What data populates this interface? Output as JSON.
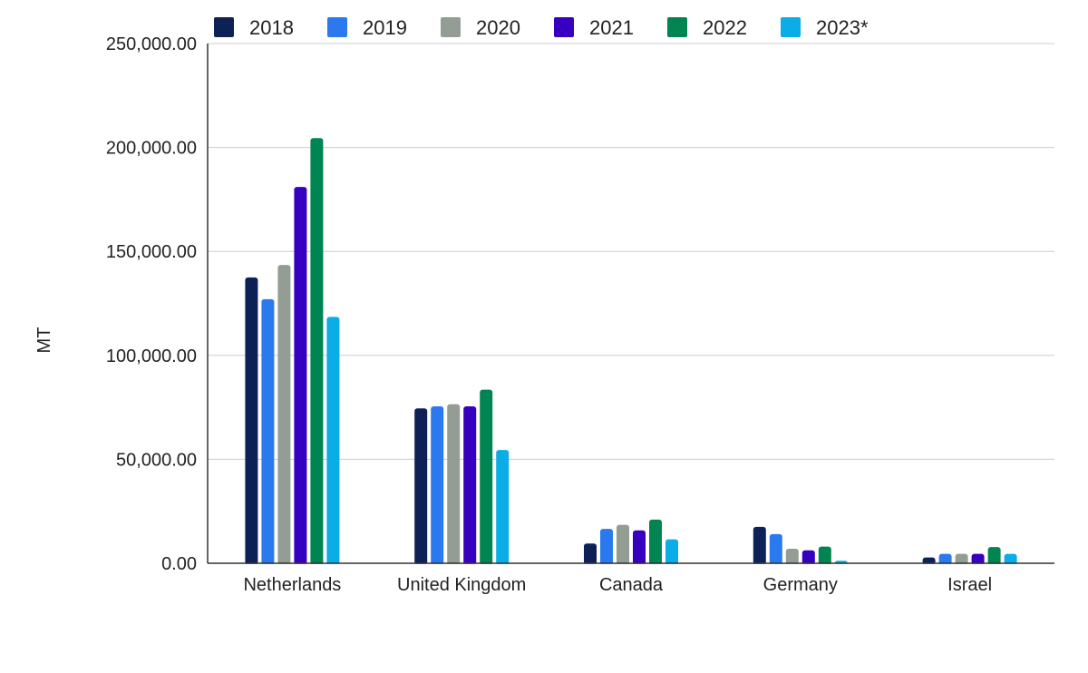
{
  "chart_data": {
    "type": "bar",
    "title": "",
    "xlabel": "",
    "ylabel": "MT",
    "ylim": [
      0,
      250000
    ],
    "yticks": [
      0,
      50000,
      100000,
      150000,
      200000,
      250000
    ],
    "ytick_labels": [
      "0.00",
      "50,000.00",
      "100,000.00",
      "150,000.00",
      "200,000.00",
      "250,000.00"
    ],
    "grid": true,
    "legend_position": "top",
    "categories": [
      "Netherlands",
      "United Kingdom",
      "Canada",
      "Germany",
      "Israel"
    ],
    "series": [
      {
        "name": "2018",
        "color": "#0d2157",
        "values": [
          137500,
          74500,
          9500,
          17500,
          2800
        ]
      },
      {
        "name": "2019",
        "color": "#2a79ef",
        "values": [
          127000,
          75500,
          16500,
          14000,
          4500
        ]
      },
      {
        "name": "2020",
        "color": "#949d94",
        "values": [
          143500,
          76500,
          18500,
          7000,
          4500
        ]
      },
      {
        "name": "2021",
        "color": "#3700c0",
        "values": [
          181000,
          75500,
          15800,
          6200,
          4500
        ]
      },
      {
        "name": "2022",
        "color": "#008552",
        "values": [
          204500,
          83500,
          21000,
          8000,
          7800
        ]
      },
      {
        "name": "2023*",
        "color": "#0aade6",
        "values": [
          118500,
          54500,
          11500,
          1200,
          4500
        ]
      }
    ]
  }
}
